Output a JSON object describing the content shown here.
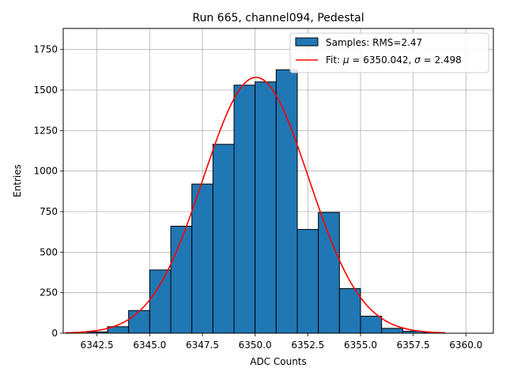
{
  "chart_data": {
    "type": "bar",
    "title": "Run 665, channel094, Pedestal",
    "xlabel": "ADC Counts",
    "ylabel": "Entries",
    "xlim": [
      6340.9,
      6361.3
    ],
    "ylim": [
      0,
      1880
    ],
    "grid": true,
    "legend_placement": "top-right",
    "bar_color": "#1f77b4",
    "fit_color": "#ff0000",
    "xticks": [
      6342.5,
      6345.0,
      6347.5,
      6350.0,
      6352.5,
      6355.0,
      6357.5,
      6360.0
    ],
    "xtick_labels": [
      "6342.5",
      "6345.0",
      "6347.5",
      "6350.0",
      "6352.5",
      "6355.0",
      "6357.5",
      "6360.0"
    ],
    "yticks": [
      0,
      250,
      500,
      750,
      1000,
      1250,
      1500,
      1750
    ],
    "ytick_labels": [
      "0",
      "250",
      "500",
      "750",
      "1000",
      "1250",
      "1500",
      "1750"
    ],
    "histogram": {
      "name": "Samples: RMS=2.47",
      "bin_edges": [
        6342,
        6343,
        6344,
        6345,
        6346,
        6347,
        6348,
        6349,
        6350,
        6351,
        6352,
        6353,
        6354,
        6355,
        6356,
        6357,
        6358,
        6359
      ],
      "counts": [
        8,
        40,
        140,
        390,
        660,
        920,
        1165,
        1530,
        1550,
        1625,
        640,
        745,
        275,
        105,
        30,
        12,
        3
      ]
    },
    "fit": {
      "name": "Fit: μ = 6350.042, σ = 2.498",
      "legend_prefix": "Fit: ",
      "mu_symbol": "μ",
      "mu_text": " = 6350.042, ",
      "sigma_symbol": "σ",
      "sigma_text": " = 2.498",
      "mu": 6350.042,
      "sigma": 2.498,
      "peak": 1578,
      "x_range": [
        6341,
        6359
      ]
    }
  }
}
